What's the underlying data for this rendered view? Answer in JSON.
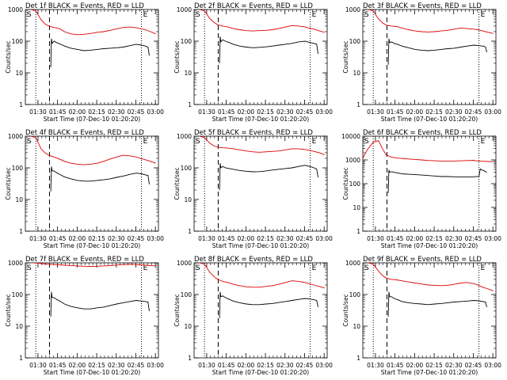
{
  "figure": {
    "ylabel": "Counts/sec",
    "xlabel": "Start Time (07-Dec-10 01:20:20)",
    "x_ticks": [
      "01:30",
      "01:45",
      "02:00",
      "02:15",
      "02:30",
      "02:45",
      "03:00"
    ],
    "y_ticks": [
      "1",
      "10",
      "100",
      "1000"
    ],
    "y_ticks_det6": [
      "1",
      "10",
      "100",
      "1000",
      "10000"
    ],
    "marker_s": "S",
    "marker_e": "E",
    "colors": {
      "events": "#000000",
      "lld": "#dd0000",
      "axis": "#000000"
    }
  },
  "chart_data": [
    {
      "title": "Det 1f BLACK = Events, RED = LLD",
      "type": "line",
      "yscale": "log",
      "ylim": [
        1,
        1000
      ],
      "xlim_min": [
        0,
        102
      ],
      "dotted_x_min": [
        8,
        89
      ],
      "dashed_x_min": 18.5,
      "series": [
        {
          "color": "red",
          "x": [
            4,
            8,
            12,
            15,
            18,
            22,
            26,
            30,
            35,
            40,
            45,
            50,
            55,
            60,
            65,
            70,
            75,
            80,
            85,
            88,
            92,
            96,
            100
          ],
          "y": [
            1000,
            900,
            480,
            350,
            300,
            270,
            250,
            200,
            170,
            160,
            165,
            175,
            190,
            200,
            220,
            245,
            270,
            280,
            265,
            250,
            230,
            200,
            170
          ]
        },
        {
          "color": "black",
          "x": [
            19.5,
            20,
            20.5,
            22,
            24,
            27,
            30,
            35,
            40,
            45,
            50,
            55,
            60,
            65,
            70,
            75,
            80,
            85,
            89,
            92,
            94,
            95
          ],
          "y": [
            15,
            120,
            85,
            100,
            90,
            80,
            70,
            60,
            55,
            50,
            52,
            55,
            58,
            60,
            62,
            65,
            72,
            80,
            75,
            70,
            65,
            35
          ]
        }
      ]
    },
    {
      "title": "Det 2f BLACK = Events, RED = LLD",
      "type": "line",
      "yscale": "log",
      "ylim": [
        1,
        1000
      ],
      "xlim_min": [
        0,
        102
      ],
      "dotted_x_min": [
        8,
        89
      ],
      "dashed_x_min": 18.5,
      "series": [
        {
          "color": "red",
          "x": [
            4,
            8,
            12,
            15,
            18,
            22,
            26,
            30,
            35,
            40,
            45,
            50,
            55,
            60,
            65,
            70,
            75,
            80,
            85,
            88,
            92,
            96,
            100
          ],
          "y": [
            1000,
            900,
            520,
            400,
            330,
            300,
            280,
            250,
            230,
            215,
            210,
            215,
            220,
            230,
            250,
            280,
            310,
            300,
            280,
            260,
            240,
            210,
            190
          ]
        },
        {
          "color": "black",
          "x": [
            19.5,
            20,
            20.5,
            22,
            24,
            27,
            30,
            35,
            40,
            45,
            50,
            55,
            60,
            65,
            70,
            75,
            80,
            85,
            89,
            92,
            94,
            95
          ],
          "y": [
            20,
            140,
            95,
            110,
            100,
            90,
            80,
            70,
            65,
            62,
            64,
            66,
            70,
            75,
            80,
            85,
            95,
            100,
            90,
            85,
            80,
            40
          ]
        }
      ]
    },
    {
      "title": "Det 3f BLACK = Events, RED = LLD",
      "type": "line",
      "yscale": "log",
      "ylim": [
        1,
        1000
      ],
      "xlim_min": [
        0,
        102
      ],
      "dotted_x_min": [
        8,
        89
      ],
      "dashed_x_min": 18.5,
      "series": [
        {
          "color": "red",
          "x": [
            4,
            8,
            12,
            15,
            18,
            22,
            26,
            30,
            35,
            40,
            45,
            50,
            55,
            60,
            65,
            70,
            75,
            80,
            85,
            88,
            92,
            96,
            100
          ],
          "y": [
            1000,
            900,
            500,
            380,
            320,
            300,
            290,
            260,
            230,
            210,
            200,
            195,
            200,
            210,
            220,
            240,
            260,
            250,
            240,
            230,
            210,
            190,
            175
          ]
        },
        {
          "color": "black",
          "x": [
            19.5,
            20,
            20.5,
            22,
            24,
            27,
            30,
            35,
            40,
            45,
            50,
            55,
            60,
            65,
            70,
            75,
            80,
            85,
            89,
            92,
            94,
            95
          ],
          "y": [
            18,
            120,
            90,
            95,
            85,
            78,
            70,
            62,
            55,
            52,
            50,
            52,
            55,
            58,
            60,
            65,
            70,
            75,
            72,
            70,
            66,
            45
          ]
        }
      ]
    },
    {
      "title": "Det 4f BLACK = Events, RED = LLD",
      "type": "line",
      "yscale": "log",
      "ylim": [
        1,
        1000
      ],
      "xlim_min": [
        0,
        102
      ],
      "dotted_x_min": [
        8,
        89
      ],
      "dashed_x_min": 18.5,
      "series": [
        {
          "color": "red",
          "x": [
            4,
            8,
            12,
            15,
            18,
            22,
            26,
            30,
            35,
            40,
            45,
            50,
            55,
            60,
            65,
            70,
            75,
            80,
            85,
            88,
            92,
            96,
            100
          ],
          "y": [
            1000,
            900,
            400,
            300,
            250,
            220,
            190,
            160,
            140,
            130,
            125,
            130,
            140,
            160,
            190,
            220,
            250,
            240,
            220,
            200,
            180,
            160,
            140
          ]
        },
        {
          "color": "black",
          "x": [
            19.5,
            20,
            20.5,
            22,
            24,
            27,
            30,
            35,
            40,
            45,
            50,
            55,
            60,
            65,
            70,
            75,
            80,
            85,
            89,
            92,
            94,
            95
          ],
          "y": [
            18,
            110,
            80,
            80,
            70,
            60,
            52,
            45,
            40,
            38,
            38,
            40,
            42,
            45,
            50,
            55,
            62,
            68,
            65,
            60,
            58,
            30
          ]
        }
      ]
    },
    {
      "title": "Det 5f BLACK = Events, RED = LLD",
      "type": "line",
      "yscale": "log",
      "ylim": [
        1,
        1000
      ],
      "xlim_min": [
        0,
        102
      ],
      "dotted_x_min": [
        8,
        89
      ],
      "dashed_x_min": 18.5,
      "series": [
        {
          "color": "red",
          "x": [
            4,
            8,
            12,
            15,
            18,
            22,
            26,
            30,
            35,
            40,
            45,
            50,
            55,
            60,
            65,
            70,
            75,
            80,
            85,
            88,
            92,
            96,
            100
          ],
          "y": [
            1000,
            900,
            600,
            500,
            450,
            430,
            420,
            400,
            370,
            340,
            320,
            310,
            320,
            330,
            340,
            370,
            400,
            400,
            380,
            360,
            330,
            300,
            260
          ]
        },
        {
          "color": "black",
          "x": [
            19.5,
            20,
            20.5,
            22,
            24,
            27,
            30,
            35,
            40,
            45,
            50,
            55,
            60,
            65,
            70,
            75,
            80,
            85,
            89,
            92,
            94,
            95
          ],
          "y": [
            20,
            140,
            100,
            110,
            100,
            95,
            90,
            82,
            78,
            75,
            76,
            80,
            85,
            90,
            95,
            100,
            110,
            120,
            110,
            100,
            90,
            50
          ]
        }
      ]
    },
    {
      "title": "Det 6f BLACK = Events, RED = LLD",
      "type": "line",
      "yscale": "log",
      "ylim": [
        1,
        10000
      ],
      "xlim_min": [
        0,
        102
      ],
      "dotted_x_min": [
        8,
        89
      ],
      "dashed_x_min": 18.5,
      "series": [
        {
          "color": "red",
          "x": [
            0,
            4,
            8,
            12,
            15,
            18,
            22,
            26,
            30,
            35,
            40,
            45,
            50,
            55,
            60,
            65,
            70,
            75,
            80,
            85,
            88,
            92,
            96,
            100
          ],
          "y": [
            1200,
            3000,
            5500,
            6500,
            3000,
            1600,
            1300,
            1200,
            1150,
            1100,
            1050,
            1000,
            950,
            920,
            900,
            900,
            900,
            920,
            940,
            960,
            900,
            880,
            860,
            840
          ]
        },
        {
          "color": "black",
          "x": [
            19.5,
            20,
            20.5,
            22,
            24,
            27,
            30,
            35,
            40,
            45,
            50,
            55,
            60,
            65,
            70,
            75,
            80,
            85,
            89,
            90,
            91,
            93,
            95
          ],
          "y": [
            40,
            380,
            300,
            320,
            300,
            280,
            260,
            250,
            240,
            230,
            220,
            210,
            200,
            200,
            195,
            190,
            190,
            195,
            200,
            420,
            380,
            350,
            300
          ]
        }
      ]
    },
    {
      "title": "Det 7f BLACK = Events, RED = LLD",
      "type": "line",
      "yscale": "log",
      "ylim": [
        1,
        1000
      ],
      "xlim_min": [
        0,
        102
      ],
      "dotted_x_min": [
        8,
        89
      ],
      "dashed_x_min": 18.5,
      "series": [
        {
          "color": "red",
          "x": [
            4,
            8,
            12,
            15,
            18,
            22,
            26,
            30,
            35,
            40,
            45,
            50,
            55,
            60,
            65,
            70,
            75,
            80,
            85,
            88,
            92,
            96,
            100
          ],
          "y": [
            1000,
            1000,
            950,
            920,
            900,
            880,
            860,
            840,
            820,
            800,
            780,
            770,
            780,
            800,
            820,
            850,
            880,
            900,
            880,
            860,
            840,
            820,
            800
          ]
        },
        {
          "color": "black",
          "x": [
            19.5,
            20,
            20.5,
            22,
            24,
            27,
            30,
            35,
            40,
            45,
            50,
            55,
            60,
            65,
            70,
            75,
            80,
            85,
            89,
            92,
            94,
            95
          ],
          "y": [
            20,
            120,
            80,
            80,
            70,
            60,
            50,
            42,
            38,
            35,
            35,
            38,
            40,
            45,
            50,
            55,
            60,
            65,
            62,
            60,
            58,
            30
          ]
        }
      ]
    },
    {
      "title": "Det 8f BLACK = Events, RED = LLD",
      "type": "line",
      "yscale": "log",
      "ylim": [
        1,
        1000
      ],
      "xlim_min": [
        0,
        102
      ],
      "dotted_x_min": [
        8,
        89
      ],
      "dashed_x_min": 18.5,
      "series": [
        {
          "color": "red",
          "x": [
            4,
            8,
            12,
            15,
            18,
            22,
            26,
            30,
            35,
            40,
            45,
            50,
            55,
            60,
            65,
            70,
            75,
            80,
            85,
            88,
            92,
            96,
            100
          ],
          "y": [
            1000,
            900,
            500,
            380,
            300,
            260,
            240,
            210,
            190,
            175,
            170,
            170,
            180,
            190,
            210,
            240,
            270,
            260,
            240,
            220,
            200,
            180,
            160
          ]
        },
        {
          "color": "black",
          "x": [
            19.5,
            20,
            20.5,
            22,
            24,
            27,
            30,
            35,
            40,
            45,
            50,
            55,
            60,
            65,
            70,
            75,
            80,
            85,
            89,
            92,
            94,
            95
          ],
          "y": [
            18,
            120,
            85,
            90,
            80,
            70,
            62,
            55,
            50,
            48,
            48,
            50,
            52,
            56,
            60,
            65,
            70,
            75,
            72,
            68,
            65,
            40
          ]
        }
      ]
    },
    {
      "title": "Det 9f BLACK = Events, RED = LLD",
      "type": "line",
      "yscale": "log",
      "ylim": [
        1,
        1000
      ],
      "xlim_min": [
        0,
        102
      ],
      "dotted_x_min": [
        8,
        89
      ],
      "dashed_x_min": 18.5,
      "series": [
        {
          "color": "red",
          "x": [
            4,
            8,
            12,
            15,
            18,
            22,
            26,
            30,
            35,
            40,
            45,
            50,
            55,
            60,
            65,
            70,
            75,
            80,
            85,
            88,
            92,
            96,
            100
          ],
          "y": [
            1000,
            900,
            550,
            400,
            330,
            300,
            290,
            270,
            250,
            230,
            215,
            200,
            195,
            190,
            195,
            210,
            230,
            240,
            220,
            200,
            170,
            150,
            130
          ]
        },
        {
          "color": "black",
          "x": [
            19.5,
            20,
            20.5,
            22,
            24,
            27,
            30,
            35,
            40,
            45,
            50,
            55,
            60,
            65,
            70,
            75,
            80,
            85,
            89,
            92,
            94,
            95
          ],
          "y": [
            20,
            120,
            85,
            85,
            75,
            68,
            60,
            55,
            52,
            50,
            48,
            50,
            52,
            55,
            58,
            60,
            62,
            65,
            63,
            60,
            58,
            40
          ]
        }
      ]
    }
  ]
}
